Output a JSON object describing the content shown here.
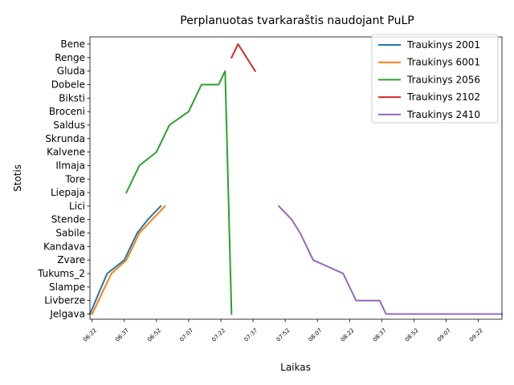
{
  "chart_data": {
    "type": "line",
    "title": "Perplanuotas tvarkaraštis naudojant PuLP",
    "xlabel": "Laikas",
    "ylabel": "Stotis",
    "stations": [
      "Jelgava",
      "Livberze",
      "Slampe",
      "Tukums_2",
      "Zvare",
      "Kandava",
      "Sabile",
      "Stende",
      "Lici",
      "Liepaja",
      "Tore",
      "Ilmaja",
      "Kalvene",
      "Skrunda",
      "Saldus",
      "Broceni",
      "Biksti",
      "Dobele",
      "Gluda",
      "Renge",
      "Bene"
    ],
    "x_ticks": [
      "06:22",
      "06:37",
      "06:52",
      "07:07",
      "07:22",
      "07:37",
      "07:52",
      "08:07",
      "08:22",
      "08:37",
      "08:52",
      "09:07",
      "09:22"
    ],
    "xlim": [
      "06:21",
      "09:33"
    ],
    "grid": false,
    "legend_position": "top-right",
    "series": [
      {
        "name": "Traukinys 2001",
        "color": "#1f77b4",
        "points": [
          [
            "06:21",
            "Jelgava"
          ],
          [
            "06:29",
            "Tukums_2"
          ],
          [
            "06:37",
            "Zvare"
          ],
          [
            "06:43",
            "Sabile"
          ],
          [
            "06:48",
            "Stende"
          ],
          [
            "06:54",
            "Lici"
          ]
        ]
      },
      {
        "name": "Traukinys 6001",
        "color": "#ff7f0e",
        "points": [
          [
            "06:22",
            "Jelgava"
          ],
          [
            "06:31",
            "Tukums_2"
          ],
          [
            "06:38",
            "Zvare"
          ],
          [
            "06:44",
            "Sabile"
          ],
          [
            "06:50",
            "Stende"
          ],
          [
            "06:56",
            "Lici"
          ]
        ]
      },
      {
        "name": "Traukinys 2056",
        "color": "#2ca02c",
        "points": [
          [
            "06:38",
            "Liepaja"
          ],
          [
            "06:44",
            "Ilmaja"
          ],
          [
            "06:52",
            "Kalvene"
          ],
          [
            "06:58",
            "Saldus"
          ],
          [
            "07:07",
            "Broceni"
          ],
          [
            "07:13",
            "Dobele"
          ],
          [
            "07:21",
            "Dobele"
          ],
          [
            "07:24",
            "Gluda"
          ],
          [
            "07:27",
            "Jelgava"
          ]
        ]
      },
      {
        "name": "Traukinys 2102",
        "color": "#d62728",
        "points": [
          [
            "07:27",
            "Renge"
          ],
          [
            "07:30",
            "Bene"
          ],
          [
            "07:38",
            "Gluda"
          ]
        ]
      },
      {
        "name": "Traukinys 2410",
        "color": "#9467bd",
        "points": [
          [
            "07:49",
            "Lici"
          ],
          [
            "07:55",
            "Stende"
          ],
          [
            "07:59",
            "Sabile"
          ],
          [
            "08:05",
            "Zvare"
          ],
          [
            "08:19",
            "Tukums_2"
          ],
          [
            "08:25",
            "Livberze"
          ],
          [
            "08:36",
            "Livberze"
          ],
          [
            "08:39",
            "Jelgava"
          ],
          [
            "09:33",
            "Jelgava"
          ]
        ]
      }
    ]
  }
}
